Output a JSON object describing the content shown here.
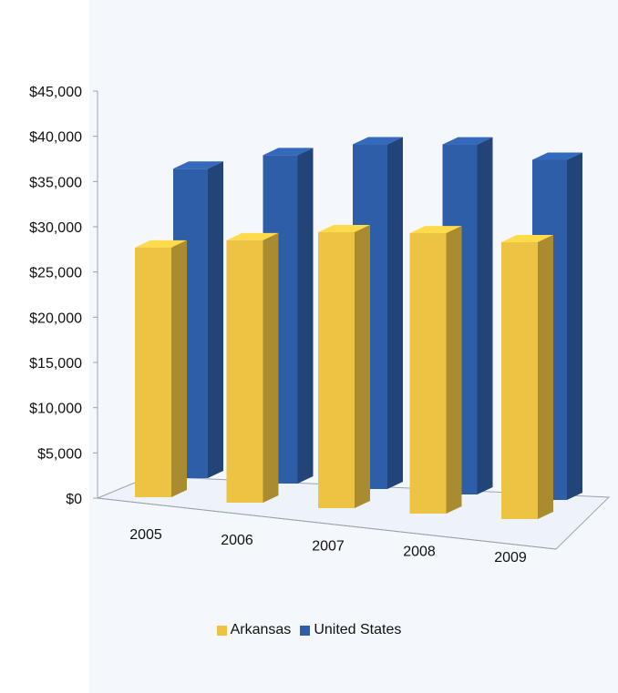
{
  "chart_data": {
    "type": "bar",
    "title": "",
    "xlabel": "",
    "ylabel": "",
    "categories": [
      "2005",
      "2006",
      "2007",
      "2008",
      "2009"
    ],
    "series": [
      {
        "name": "Arkansas",
        "color": "#ecc343",
        "values": [
          27600,
          29000,
          30500,
          31000,
          30600
        ]
      },
      {
        "name": "United States",
        "color": "#2f5ea8",
        "values": [
          34200,
          36300,
          38100,
          38700,
          37600
        ]
      }
    ],
    "ylim": [
      0,
      45000
    ],
    "y_ticks": [
      "$0",
      "$5,000",
      "$10,000",
      "$15,000",
      "$20,000",
      "$25,000",
      "$30,000",
      "$35,000",
      "$40,000",
      "$45,000"
    ],
    "grid": false,
    "legend_position": "bottom",
    "style": "3d-clustered-column"
  }
}
